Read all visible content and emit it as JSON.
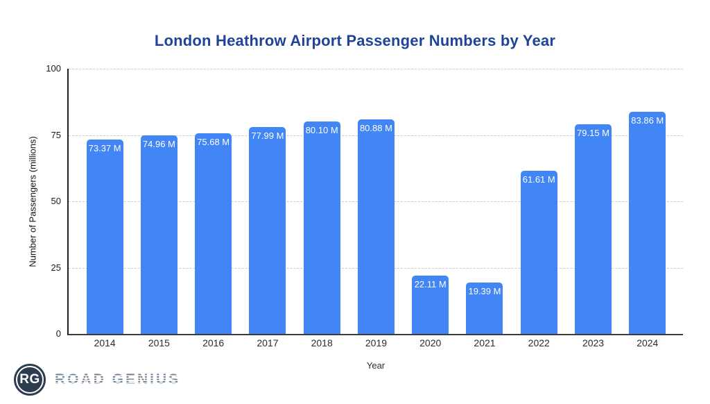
{
  "chart_data": {
    "type": "bar",
    "title": "London Heathrow Airport Passenger Numbers by Year",
    "categories": [
      "2014",
      "2015",
      "2016",
      "2017",
      "2018",
      "2019",
      "2020",
      "2021",
      "2022",
      "2023",
      "2024"
    ],
    "values": [
      73.37,
      74.96,
      75.68,
      77.99,
      80.1,
      80.88,
      22.11,
      19.39,
      61.61,
      79.15,
      83.86
    ],
    "value_labels": [
      "73.37 M",
      "74.96 M",
      "75.68 M",
      "77.99 M",
      "80.10 M",
      "80.88 M",
      "22.11 M",
      "19.39 M",
      "61.61 M",
      "79.15 M",
      "83.86 M"
    ],
    "xlabel": "Year",
    "ylabel": "Number of Passengers (millions)",
    "ylim": [
      0,
      100
    ],
    "yticks": [
      0,
      25,
      50,
      75,
      100
    ],
    "grid": true,
    "legend": "none",
    "bar_color": "#4285F4",
    "value_label_color": "#ffffff",
    "title_color": "#1f4396"
  },
  "branding": {
    "logo_monogram": "RG",
    "logo_text": "ROAD GENIUS"
  }
}
